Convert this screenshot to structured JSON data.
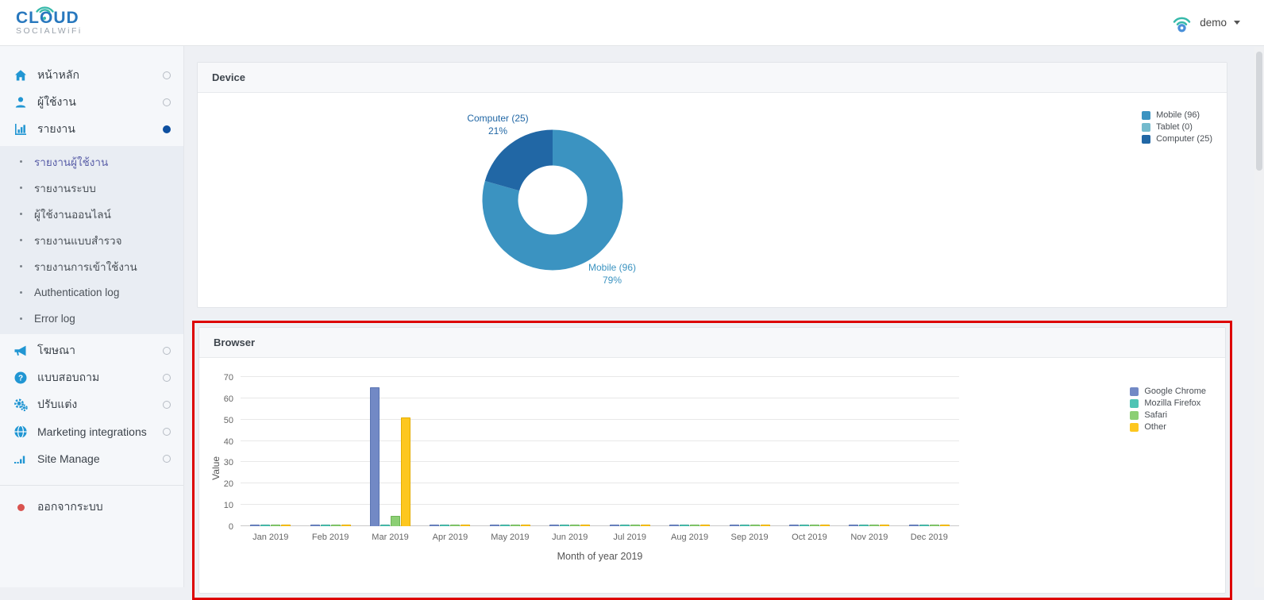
{
  "header": {
    "logo": {
      "title": "CLOUD",
      "subtitle": "SOCIALWiFi"
    },
    "user_menu": {
      "name": "demo",
      "icon": "wifi"
    }
  },
  "sidebar": {
    "menu_top": [
      {
        "label": "หน้าหลัก",
        "icon": "home-icon",
        "active": false
      },
      {
        "label": "ผู้ใช้งาน",
        "icon": "user-icon",
        "active": false
      },
      {
        "label": "รายงาน",
        "icon": "bar-chart-icon",
        "active": true
      }
    ],
    "submenu": [
      {
        "label": "รายงานผู้ใช้งาน",
        "active": true
      },
      {
        "label": "รายงานระบบ",
        "active": false
      },
      {
        "label": "ผู้ใช้งานออนไลน์",
        "active": false
      },
      {
        "label": "รายงานแบบสำรวจ",
        "active": false
      },
      {
        "label": "รายงานการเข้าใช้งาน",
        "active": false
      },
      {
        "label": "Authentication log",
        "active": false
      },
      {
        "label": "Error log",
        "active": false
      }
    ],
    "menu_bottom": [
      {
        "label": "โฆษณา",
        "icon": "megaphone-icon",
        "active": false
      },
      {
        "label": "แบบสอบถาม",
        "icon": "question-icon",
        "active": false
      },
      {
        "label": "ปรับแต่ง",
        "icon": "gears-icon",
        "active": false
      },
      {
        "label": "Marketing integrations",
        "icon": "globe-icon",
        "active": false
      },
      {
        "label": "Site Manage",
        "icon": "signal-icon",
        "active": false
      }
    ],
    "logout_label": "ออกจากระบบ"
  },
  "panels": {
    "device": {
      "title": "Device"
    },
    "browser": {
      "title": "Browser",
      "highlighted": true,
      "highlight_color": "#dd0000"
    }
  },
  "chart_data": [
    {
      "type": "pie",
      "title": "Device",
      "donut": true,
      "slices": [
        {
          "label": "Mobile",
          "value": 96,
          "pct": 79,
          "color": "#3b93c1"
        },
        {
          "label": "Tablet",
          "value": 0,
          "pct": 0,
          "color": "#74bacd"
        },
        {
          "label": "Computer",
          "value": 25,
          "pct": 21,
          "color": "#2167a5"
        }
      ],
      "legend": [
        "Mobile (96)",
        "Tablet (0)",
        "Computer (25)"
      ],
      "legend_position": "right",
      "callouts": [
        {
          "line1": "Computer (25)",
          "line2": "21%",
          "slice": 2
        },
        {
          "line1": "Mobile (96)",
          "line2": "79%",
          "slice": 0
        }
      ]
    },
    {
      "type": "bar",
      "title": "Browser",
      "categories": [
        "Jan 2019",
        "Feb 2019",
        "Mar 2019",
        "Apr 2019",
        "May 2019",
        "Jun 2019",
        "Jul 2019",
        "Aug 2019",
        "Sep 2019",
        "Oct 2019",
        "Nov 2019",
        "Dec 2019"
      ],
      "series": [
        {
          "name": "Google Chrome",
          "color": "#7289c5",
          "border": "#5a74b2",
          "values": [
            0,
            0,
            65,
            0,
            0,
            0,
            0,
            0,
            0,
            0,
            0,
            0
          ]
        },
        {
          "name": "Mozilla Firefox",
          "color": "#4fc4b4",
          "border": "#38a796",
          "values": [
            0,
            0,
            0,
            0,
            0,
            0,
            0,
            0,
            0,
            0,
            0,
            0
          ]
        },
        {
          "name": "Safari",
          "color": "#8ccf74",
          "border": "#6db457",
          "values": [
            0,
            0,
            5,
            0,
            0,
            0,
            0,
            0,
            0,
            0,
            0,
            0
          ]
        },
        {
          "name": "Other",
          "color": "#fdc71f",
          "border": "#e4ad00",
          "values": [
            0,
            0,
            51,
            0,
            0,
            0,
            0,
            0,
            0,
            0,
            0,
            0
          ]
        }
      ],
      "xlabel": "Month of year 2019",
      "ylabel": "Value",
      "ylim": [
        0,
        70
      ],
      "ytick_step": 10,
      "grid": true,
      "legend_position": "right"
    }
  ]
}
